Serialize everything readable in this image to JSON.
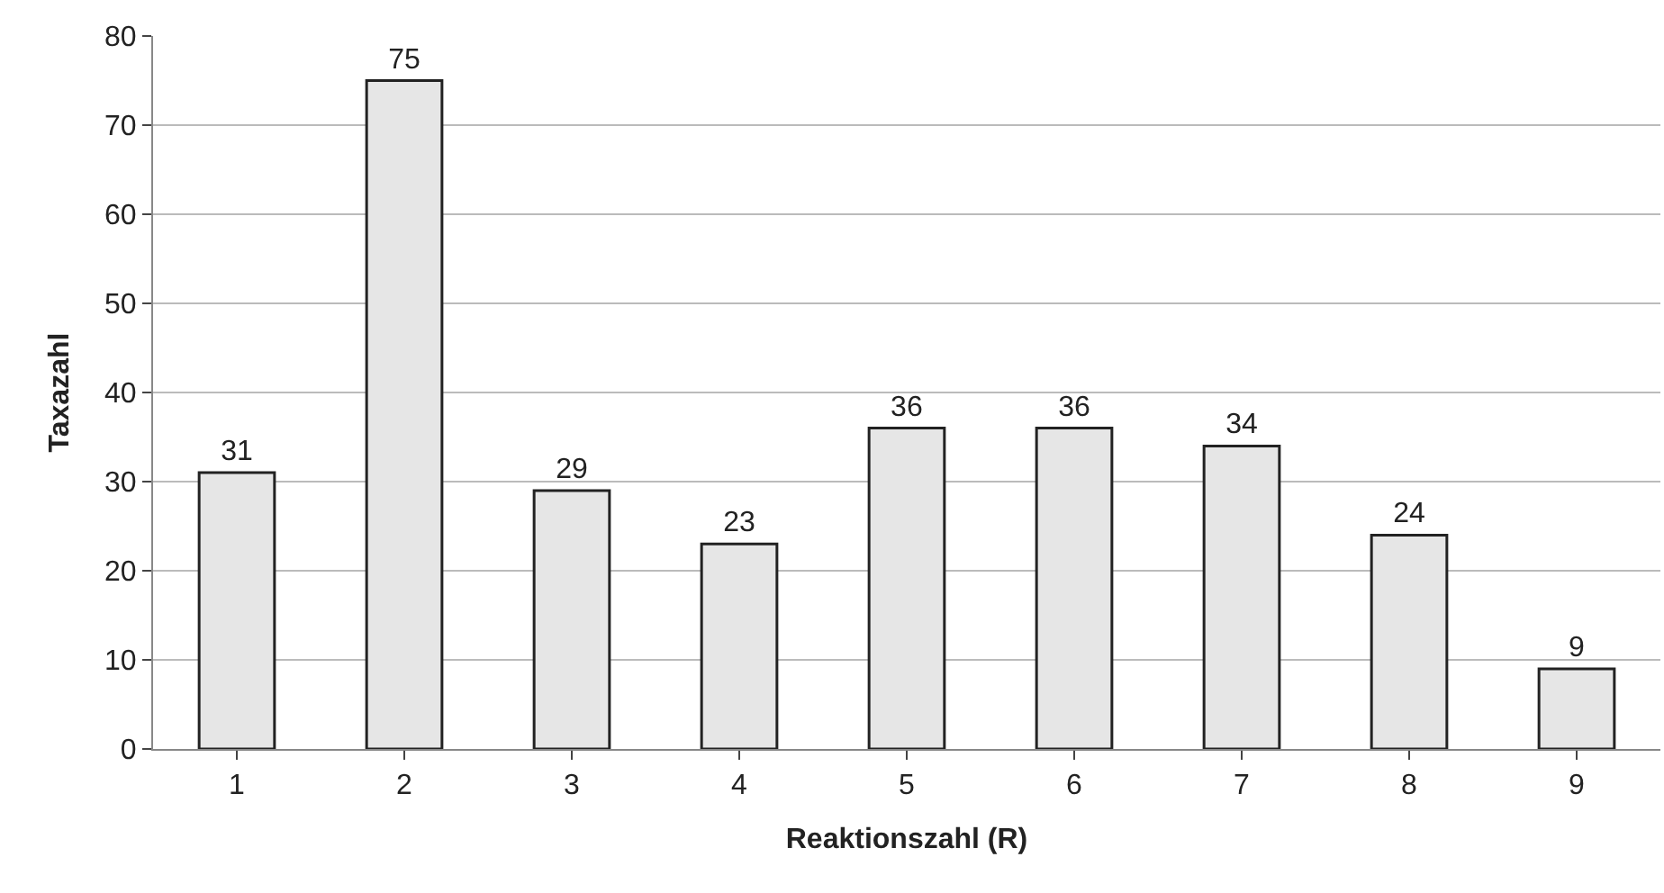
{
  "chart_data": {
    "type": "bar",
    "xlabel": "Reaktionszahl (R)",
    "ylabel": "Taxazahl",
    "categories": [
      "1",
      "2",
      "3",
      "4",
      "5",
      "6",
      "7",
      "8",
      "9"
    ],
    "values": [
      31,
      75,
      29,
      23,
      36,
      36,
      34,
      24,
      9
    ],
    "color": "#e6e6e6",
    "ylim": [
      0,
      80
    ],
    "yticks": [
      0,
      10,
      20,
      30,
      40,
      50,
      60,
      70,
      80
    ],
    "grid": "y",
    "data_labels": true
  }
}
